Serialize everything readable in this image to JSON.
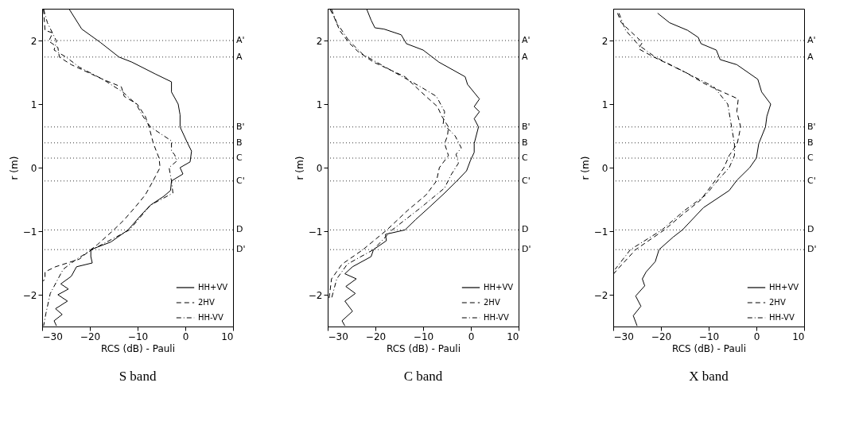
{
  "chart_data": [
    {
      "type": "line",
      "title": "S band",
      "xlabel": "RCS (dB) - Pauli",
      "ylabel": "r (m)",
      "xlim": [
        -30,
        10
      ],
      "xticks": [
        -30,
        -20,
        -10,
        0,
        10
      ],
      "ylim": [
        -2.5,
        2.5
      ],
      "yticks": [
        -2,
        -1,
        0,
        1,
        2
      ],
      "legend": "bottom right",
      "series": [
        {
          "name": "HH+VV",
          "color": "#000000",
          "line_style": "solid",
          "x": [
            -24.3,
            -21.7,
            -17.8,
            -13.9,
            -11.2,
            -6.2,
            -2.9,
            -2.9,
            -1.5,
            -1.1,
            -1.1,
            0.5,
            1.3,
            1.0,
            -1.1,
            -0.5,
            -2.9,
            -3.1,
            -4.5,
            -7.3,
            -9.2,
            -12.0,
            -15.6,
            -19.8,
            -19.8,
            -19.5,
            -22.8,
            -23.9,
            -26.1,
            -24.5,
            -26.7,
            -24.7,
            -27.2,
            -25.8,
            -27.5,
            -27.0
          ],
          "values": [
            2.49,
            2.18,
            1.97,
            1.74,
            1.66,
            1.47,
            1.35,
            1.19,
            1.0,
            0.83,
            0.64,
            0.38,
            0.26,
            0.09,
            0.0,
            -0.1,
            -0.21,
            -0.36,
            -0.45,
            -0.59,
            -0.74,
            -0.98,
            -1.17,
            -1.29,
            -1.4,
            -1.5,
            -1.56,
            -1.71,
            -1.83,
            -1.91,
            -2.0,
            -2.1,
            -2.22,
            -2.31,
            -2.41,
            -2.49
          ]
        },
        {
          "name": "2HV",
          "color": "#000000",
          "line_style": "dashed",
          "x": [
            -29.7,
            -29.4,
            -27.8,
            -28.6,
            -26.7,
            -26.4,
            -23.9,
            -17.3,
            -13.4,
            -12.8,
            -10.1,
            -8.4,
            -7.6,
            -6.7,
            -5.5,
            -5.3,
            -6.7,
            -8.4,
            -10.6,
            -12.8,
            -15.0,
            -18.4,
            -19.8,
            -22.2,
            -27.2,
            -29.4,
            -29.4,
            -30.0
          ],
          "values": [
            2.49,
            2.16,
            2.12,
            1.99,
            1.89,
            1.74,
            1.62,
            1.39,
            1.27,
            1.12,
            1.0,
            0.81,
            0.64,
            0.38,
            0.15,
            0.0,
            -0.2,
            -0.43,
            -0.63,
            -0.82,
            -0.98,
            -1.21,
            -1.29,
            -1.44,
            -1.56,
            -1.64,
            -1.76,
            -1.79
          ]
        },
        {
          "name": "HH-VV",
          "color": "#000000",
          "line_style": "dashdot",
          "x": [
            -29.7,
            -28.9,
            -27.0,
            -27.5,
            -25.0,
            -22.2,
            -17.3,
            -13.1,
            -10.3,
            -8.9,
            -7.3,
            -2.9,
            -2.9,
            -2.3,
            -1.7,
            -3.4,
            -2.9,
            -2.6,
            -7.3,
            -11.7,
            -19.5,
            -22.8,
            -25.6,
            -28.3,
            -29.2,
            -29.7
          ],
          "values": [
            2.49,
            2.28,
            1.99,
            1.85,
            1.74,
            1.58,
            1.39,
            1.19,
            1.0,
            0.81,
            0.64,
            0.42,
            0.26,
            0.21,
            0.11,
            0.0,
            -0.21,
            -0.4,
            -0.59,
            -0.98,
            -1.29,
            -1.44,
            -1.6,
            -1.98,
            -2.29,
            -2.49
          ]
        }
      ],
      "ref_lines": [
        {
          "axis": "y",
          "value": 2.0,
          "label": "A'",
          "line_style": "dotted"
        },
        {
          "axis": "y",
          "value": 1.74,
          "label": "A",
          "line_style": "dotted"
        },
        {
          "axis": "y",
          "value": 0.64,
          "label": "B'",
          "line_style": "dotted"
        },
        {
          "axis": "y",
          "value": 0.39,
          "label": "B",
          "line_style": "dotted"
        },
        {
          "axis": "y",
          "value": 0.15,
          "label": "C",
          "line_style": "dotted"
        },
        {
          "axis": "y",
          "value": -0.21,
          "label": "C'",
          "line_style": "dotted"
        },
        {
          "axis": "y",
          "value": -0.98,
          "label": "D",
          "line_style": "dotted"
        },
        {
          "axis": "y",
          "value": -1.29,
          "label": "D'",
          "line_style": "dotted"
        }
      ]
    },
    {
      "type": "line",
      "title": "C band",
      "xlabel": "RCS (dB) - Pauli",
      "ylabel": "r (m)",
      "xlim": [
        -30,
        10
      ],
      "xticks": [
        -30,
        -20,
        -10,
        0,
        10
      ],
      "ylim": [
        -2.5,
        2.5
      ],
      "yticks": [
        -2,
        -1,
        0,
        1,
        2
      ],
      "legend": "bottom right",
      "series": [
        {
          "name": "HH+VV",
          "color": "#000000",
          "line_style": "solid",
          "x": [
            -21.8,
            -20.9,
            -20.1,
            -18.2,
            -14.6,
            -13.5,
            -10.0,
            -6.7,
            -1.2,
            -0.7,
            1.8,
            0.7,
            1.8,
            0.7,
            1.6,
            0.7,
            0.7,
            -0.1,
            -0.9,
            -2.8,
            -5.5,
            -8.8,
            -11.6,
            -13.8,
            -17.9,
            -17.7,
            -20.4,
            -20.9,
            -24.8,
            -26.4,
            -24.0,
            -26.2,
            -24.2,
            -26.4,
            -24.8,
            -27.0,
            -26.4
          ],
          "values": [
            2.49,
            2.32,
            2.2,
            2.18,
            2.09,
            1.95,
            1.85,
            1.66,
            1.43,
            1.31,
            1.08,
            0.96,
            0.88,
            0.77,
            0.64,
            0.38,
            0.24,
            0.11,
            -0.05,
            -0.2,
            -0.4,
            -0.63,
            -0.82,
            -0.98,
            -1.05,
            -1.15,
            -1.29,
            -1.4,
            -1.56,
            -1.67,
            -1.75,
            -1.87,
            -1.98,
            -2.1,
            -2.26,
            -2.41,
            -2.49
          ]
        },
        {
          "name": "2HV",
          "color": "#000000",
          "line_style": "dashed",
          "x": [
            -29.5,
            -28.6,
            -27.5,
            -25.6,
            -23.7,
            -20.4,
            -13.8,
            -9.4,
            -7.0,
            -6.1,
            -4.7,
            -4.9,
            -5.5,
            -4.7,
            -6.6,
            -7.2,
            -9.4,
            -13.2,
            -17.6,
            -22.6,
            -27.0,
            -29.2,
            -29.7
          ],
          "values": [
            2.49,
            2.36,
            2.16,
            1.97,
            1.83,
            1.66,
            1.43,
            1.12,
            0.96,
            0.81,
            0.64,
            0.5,
            0.38,
            0.19,
            0.0,
            -0.21,
            -0.43,
            -0.67,
            -0.98,
            -1.29,
            -1.52,
            -1.75,
            -2.06
          ]
        },
        {
          "name": "HH-VV",
          "color": "#000000",
          "line_style": "dashdot",
          "x": [
            -29.2,
            -28.1,
            -25.6,
            -22.6,
            -16.0,
            -10.5,
            -7.2,
            -5.5,
            -5.8,
            -3.3,
            -2.0,
            -3.1,
            -2.6,
            -4.2,
            -5.5,
            -10.5,
            -16.5,
            -20.4,
            -25.9,
            -28.1,
            -29.2
          ],
          "values": [
            2.49,
            2.28,
            2.0,
            1.78,
            1.5,
            1.27,
            1.12,
            0.88,
            0.69,
            0.5,
            0.31,
            0.21,
            0.07,
            -0.12,
            -0.32,
            -0.63,
            -0.98,
            -1.29,
            -1.52,
            -1.75,
            -2.06
          ]
        }
      ],
      "ref_lines": [
        {
          "axis": "y",
          "value": 2.0,
          "label": "A'",
          "line_style": "dotted"
        },
        {
          "axis": "y",
          "value": 1.74,
          "label": "A",
          "line_style": "dotted"
        },
        {
          "axis": "y",
          "value": 0.64,
          "label": "B'",
          "line_style": "dotted"
        },
        {
          "axis": "y",
          "value": 0.39,
          "label": "B",
          "line_style": "dotted"
        },
        {
          "axis": "y",
          "value": 0.15,
          "label": "C",
          "line_style": "dotted"
        },
        {
          "axis": "y",
          "value": -0.21,
          "label": "C'",
          "line_style": "dotted"
        },
        {
          "axis": "y",
          "value": -0.98,
          "label": "D",
          "line_style": "dotted"
        },
        {
          "axis": "y",
          "value": -1.29,
          "label": "D'",
          "line_style": "dotted"
        }
      ]
    },
    {
      "type": "line",
      "title": "X band",
      "xlabel": "RCS (dB) - Pauli",
      "ylabel": "r (m)",
      "xlim": [
        -30,
        10
      ],
      "xticks": [
        -30,
        -20,
        -10,
        0,
        10
      ],
      "ylim": [
        -2.5,
        2.5
      ],
      "yticks": [
        -2,
        -1,
        0,
        1,
        2
      ],
      "legend": "bottom right",
      "series": [
        {
          "name": "HH+VV",
          "color": "#000000",
          "line_style": "solid",
          "x": [
            -20.7,
            -18.2,
            -14.4,
            -12.2,
            -11.6,
            -8.4,
            -7.6,
            -4.1,
            0.3,
            1.1,
            3.0,
            2.2,
            1.9,
            0.5,
            0.0,
            -1.4,
            -4.1,
            -5.7,
            -11.1,
            -15.5,
            -17.4,
            -20.4,
            -21.2,
            -23.1,
            -23.9,
            -23.4,
            -25.3,
            -24.2,
            -25.8,
            -25.0
          ],
          "values": [
            2.43,
            2.28,
            2.16,
            2.05,
            1.95,
            1.85,
            1.7,
            1.62,
            1.39,
            1.19,
            1.0,
            0.81,
            0.64,
            0.38,
            0.15,
            0.0,
            -0.2,
            -0.36,
            -0.63,
            -0.98,
            -1.09,
            -1.29,
            -1.48,
            -1.64,
            -1.75,
            -1.86,
            -2.02,
            -2.18,
            -2.33,
            -2.49
          ]
        },
        {
          "name": "2HV",
          "color": "#000000",
          "line_style": "dashed",
          "x": [
            -29.1,
            -28.3,
            -23.9,
            -24.7,
            -21.5,
            -14.9,
            -10.6,
            -3.8,
            -4.1,
            -3.3,
            -4.0,
            -5.7,
            -6.8,
            -8.7,
            -11.7,
            -15.5,
            -19.3,
            -25.3,
            -29.1,
            -29.9
          ],
          "values": [
            2.43,
            2.28,
            1.97,
            1.87,
            1.74,
            1.5,
            1.31,
            1.08,
            0.88,
            0.64,
            0.38,
            0.19,
            0.0,
            -0.21,
            -0.51,
            -0.74,
            -0.98,
            -1.29,
            -1.6,
            -1.67
          ]
        },
        {
          "name": "HH-VV",
          "color": "#000000",
          "line_style": "dashdot",
          "x": [
            -28.8,
            -27.4,
            -24.7,
            -21.2,
            -14.9,
            -8.9,
            -6.0,
            -5.2,
            -4.6,
            -4.6,
            -5.7,
            -8.2,
            -10.6,
            -15.0,
            -19.8,
            -26.4,
            -29.6
          ],
          "values": [
            2.43,
            2.16,
            1.93,
            1.74,
            1.5,
            1.27,
            1.0,
            0.64,
            0.38,
            0.19,
            0.0,
            -0.21,
            -0.43,
            -0.67,
            -0.98,
            -1.29,
            -1.6
          ]
        }
      ],
      "ref_lines": [
        {
          "axis": "y",
          "value": 2.0,
          "label": "A'",
          "line_style": "dotted"
        },
        {
          "axis": "y",
          "value": 1.74,
          "label": "A",
          "line_style": "dotted"
        },
        {
          "axis": "y",
          "value": 0.64,
          "label": "B'",
          "line_style": "dotted"
        },
        {
          "axis": "y",
          "value": 0.39,
          "label": "B",
          "line_style": "dotted"
        },
        {
          "axis": "y",
          "value": 0.15,
          "label": "C",
          "line_style": "dotted"
        },
        {
          "axis": "y",
          "value": -0.21,
          "label": "C'",
          "line_style": "dotted"
        },
        {
          "axis": "y",
          "value": -0.98,
          "label": "D",
          "line_style": "dotted"
        },
        {
          "axis": "y",
          "value": -1.29,
          "label": "D'",
          "line_style": "dotted"
        }
      ]
    }
  ]
}
